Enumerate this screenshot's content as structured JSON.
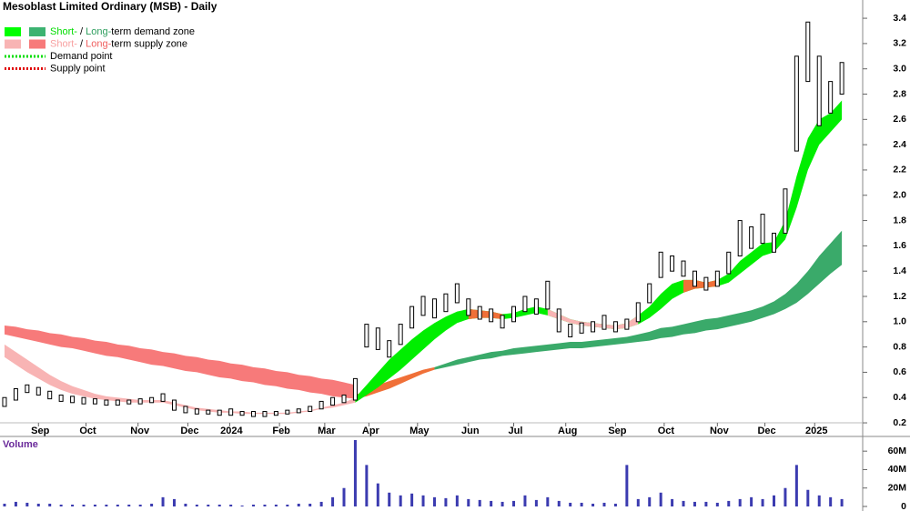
{
  "chart_data": [
    {
      "type": "ohlc",
      "title": "Mesoblast Limited Ordinary (MSB) - Daily",
      "color": "#000000",
      "x": [
        0,
        1,
        2,
        3,
        4,
        5,
        6,
        7,
        8,
        9,
        10,
        11,
        12,
        13,
        14,
        15,
        16,
        17,
        18,
        19,
        20,
        21,
        22,
        23,
        24,
        25,
        26,
        27,
        28,
        29,
        30,
        31,
        32,
        33,
        34,
        35,
        36,
        37,
        38,
        39,
        40,
        41,
        42,
        43,
        44,
        45,
        46,
        47,
        48,
        49,
        50,
        51,
        52,
        53,
        54,
        55,
        56,
        57,
        58,
        59,
        60,
        61,
        62,
        63,
        64,
        65,
        66,
        67,
        68,
        69,
        70,
        71,
        72,
        73,
        74
      ],
      "high": [
        0.4,
        0.47,
        0.5,
        0.48,
        0.45,
        0.42,
        0.41,
        0.4,
        0.39,
        0.38,
        0.38,
        0.38,
        0.39,
        0.4,
        0.43,
        0.38,
        0.33,
        0.31,
        0.3,
        0.3,
        0.31,
        0.29,
        0.29,
        0.29,
        0.29,
        0.3,
        0.31,
        0.33,
        0.37,
        0.4,
        0.42,
        0.55,
        0.98,
        0.95,
        0.85,
        0.98,
        1.12,
        1.2,
        1.18,
        1.22,
        1.3,
        1.18,
        1.12,
        1.1,
        1.05,
        1.12,
        1.2,
        1.18,
        1.32,
        1.1,
        0.98,
        0.99,
        1.0,
        1.05,
        1.0,
        1.02,
        1.15,
        1.3,
        1.55,
        1.52,
        1.48,
        1.4,
        1.35,
        1.4,
        1.55,
        1.8,
        1.75,
        1.85,
        1.7,
        2.05,
        3.1,
        3.37,
        3.1,
        2.9,
        3.05
      ],
      "low": [
        0.33,
        0.38,
        0.44,
        0.42,
        0.39,
        0.37,
        0.36,
        0.35,
        0.35,
        0.34,
        0.34,
        0.35,
        0.35,
        0.36,
        0.37,
        0.3,
        0.28,
        0.27,
        0.27,
        0.26,
        0.26,
        0.26,
        0.25,
        0.25,
        0.26,
        0.27,
        0.28,
        0.29,
        0.31,
        0.34,
        0.36,
        0.38,
        0.8,
        0.78,
        0.72,
        0.82,
        0.95,
        1.05,
        1.03,
        1.08,
        1.15,
        1.05,
        1.02,
        1.0,
        0.95,
        1.0,
        1.08,
        1.06,
        1.1,
        0.92,
        0.88,
        0.91,
        0.92,
        0.94,
        0.92,
        0.94,
        1.0,
        1.15,
        1.35,
        1.4,
        1.36,
        1.28,
        1.25,
        1.28,
        1.38,
        1.52,
        1.58,
        1.62,
        1.55,
        1.7,
        2.35,
        2.9,
        2.55,
        2.65,
        2.8
      ],
      "zones": [
        {
          "color": "#f77a7a",
          "x": [
            0,
            1,
            2,
            3,
            4,
            5,
            6,
            7,
            8,
            9,
            10,
            11,
            12,
            13,
            14,
            15,
            16,
            17,
            18,
            19,
            20,
            21,
            22,
            23,
            24,
            25,
            26,
            27,
            28,
            29,
            30,
            31
          ],
          "lower": [
            0.9,
            0.88,
            0.86,
            0.84,
            0.82,
            0.8,
            0.79,
            0.77,
            0.75,
            0.73,
            0.72,
            0.7,
            0.68,
            0.66,
            0.65,
            0.63,
            0.61,
            0.6,
            0.58,
            0.56,
            0.55,
            0.53,
            0.52,
            0.5,
            0.49,
            0.47,
            0.46,
            0.44,
            0.43,
            0.41,
            0.4,
            0.39
          ],
          "upper": [
            0.97,
            0.96,
            0.94,
            0.93,
            0.91,
            0.9,
            0.88,
            0.87,
            0.85,
            0.84,
            0.82,
            0.81,
            0.79,
            0.78,
            0.76,
            0.75,
            0.73,
            0.72,
            0.7,
            0.69,
            0.67,
            0.66,
            0.64,
            0.63,
            0.61,
            0.6,
            0.58,
            0.57,
            0.55,
            0.54,
            0.52,
            0.5
          ]
        },
        {
          "color": "#f07038",
          "x": [
            31,
            32,
            33,
            34,
            35,
            36,
            37,
            38
          ],
          "lower": [
            0.39,
            0.41,
            0.44,
            0.47,
            0.51,
            0.55,
            0.59,
            0.62
          ],
          "upper": [
            0.42,
            0.46,
            0.5,
            0.53,
            0.56,
            0.59,
            0.62,
            0.64
          ]
        },
        {
          "color": "#3aaa6a",
          "x": [
            38,
            39,
            40,
            41,
            42,
            43,
            44,
            45,
            46,
            47,
            48,
            49,
            50,
            51,
            52,
            53,
            54,
            55,
            56,
            57,
            58,
            59,
            60,
            61,
            62,
            63,
            64,
            65,
            66,
            67,
            68,
            69,
            70,
            71,
            72,
            73,
            74
          ],
          "lower": [
            0.62,
            0.64,
            0.66,
            0.68,
            0.7,
            0.71,
            0.73,
            0.74,
            0.75,
            0.76,
            0.77,
            0.78,
            0.79,
            0.79,
            0.8,
            0.81,
            0.82,
            0.83,
            0.84,
            0.85,
            0.87,
            0.88,
            0.9,
            0.91,
            0.93,
            0.94,
            0.96,
            0.98,
            1.0,
            1.03,
            1.06,
            1.1,
            1.15,
            1.22,
            1.3,
            1.38,
            1.45
          ],
          "upper": [
            0.64,
            0.67,
            0.7,
            0.72,
            0.74,
            0.76,
            0.77,
            0.79,
            0.8,
            0.81,
            0.82,
            0.83,
            0.84,
            0.84,
            0.85,
            0.86,
            0.87,
            0.88,
            0.9,
            0.92,
            0.95,
            0.96,
            0.98,
            1.0,
            1.02,
            1.03,
            1.05,
            1.07,
            1.09,
            1.12,
            1.16,
            1.22,
            1.3,
            1.4,
            1.52,
            1.62,
            1.72
          ]
        },
        {
          "color": "#f8b4b4",
          "x": [
            0,
            1,
            2,
            3,
            4,
            5,
            6,
            7,
            8,
            9,
            10,
            11,
            12,
            13,
            14,
            15,
            16,
            17,
            18,
            19,
            20,
            21,
            22,
            23,
            24,
            25,
            26,
            27,
            28,
            29,
            30,
            31
          ],
          "lower": [
            0.72,
            0.66,
            0.6,
            0.55,
            0.5,
            0.46,
            0.43,
            0.41,
            0.39,
            0.38,
            0.37,
            0.36,
            0.36,
            0.36,
            0.36,
            0.34,
            0.32,
            0.3,
            0.29,
            0.28,
            0.28,
            0.27,
            0.27,
            0.27,
            0.27,
            0.27,
            0.28,
            0.29,
            0.31,
            0.32,
            0.34,
            0.36
          ],
          "upper": [
            0.82,
            0.76,
            0.7,
            0.64,
            0.58,
            0.53,
            0.49,
            0.46,
            0.43,
            0.41,
            0.4,
            0.39,
            0.38,
            0.38,
            0.38,
            0.36,
            0.34,
            0.32,
            0.31,
            0.3,
            0.29,
            0.29,
            0.28,
            0.28,
            0.28,
            0.28,
            0.29,
            0.3,
            0.32,
            0.34,
            0.36,
            0.4
          ]
        },
        {
          "color": "#00ee00",
          "x": [
            31,
            32,
            33,
            34,
            35,
            36,
            37,
            38,
            39,
            40,
            41,
            42,
            43,
            44,
            45,
            46,
            47,
            48,
            49,
            50,
            51,
            52,
            53,
            54,
            55,
            56,
            57,
            58,
            59,
            60,
            61,
            62,
            63,
            64,
            65,
            66,
            67,
            68,
            69,
            70,
            71,
            72,
            73,
            74
          ],
          "lower": [
            0.36,
            0.42,
            0.48,
            0.55,
            0.62,
            0.7,
            0.78,
            0.86,
            0.93,
            0.99,
            1.02,
            1.03,
            1.03,
            1.02,
            1.03,
            1.05,
            1.07,
            1.05,
            1.02,
            0.99,
            0.97,
            0.96,
            0.95,
            0.94,
            0.95,
            0.98,
            1.03,
            1.1,
            1.18,
            1.23,
            1.26,
            1.27,
            1.28,
            1.31,
            1.38,
            1.45,
            1.52,
            1.55,
            1.65,
            1.9,
            2.2,
            2.4,
            2.5,
            2.6
          ],
          "upper": [
            0.4,
            0.5,
            0.6,
            0.7,
            0.78,
            0.86,
            0.93,
            0.99,
            1.04,
            1.08,
            1.1,
            1.09,
            1.08,
            1.06,
            1.07,
            1.1,
            1.12,
            1.1,
            1.06,
            1.02,
            1.0,
            0.99,
            0.98,
            0.97,
            0.99,
            1.05,
            1.12,
            1.22,
            1.3,
            1.33,
            1.33,
            1.31,
            1.33,
            1.38,
            1.48,
            1.55,
            1.62,
            1.63,
            1.8,
            2.15,
            2.45,
            2.6,
            2.65,
            2.75
          ]
        },
        {
          "color": "#f07038",
          "x": [
            41,
            42,
            43,
            44
          ],
          "lower": [
            1.02,
            1.03,
            1.03,
            1.02
          ],
          "upper": [
            1.1,
            1.09,
            1.08,
            1.06
          ]
        },
        {
          "color": "#f8b4b4",
          "x": [
            48,
            49,
            50,
            51,
            52,
            53,
            54,
            55,
            56
          ],
          "lower": [
            1.05,
            1.02,
            0.99,
            0.97,
            0.96,
            0.95,
            0.94,
            0.95,
            0.98
          ],
          "upper": [
            1.1,
            1.06,
            1.02,
            1.0,
            0.99,
            0.98,
            0.97,
            0.99,
            1.05
          ]
        },
        {
          "color": "#f07038",
          "x": [
            60,
            61,
            62,
            63
          ],
          "lower": [
            1.23,
            1.26,
            1.27,
            1.28
          ],
          "upper": [
            1.33,
            1.33,
            1.31,
            1.33
          ]
        }
      ],
      "legend": [
        {
          "swatches": [
            "#00ff00",
            "#3cb371"
          ],
          "parts": [
            {
              "text": "Short-",
              "color": "#00dd00"
            },
            {
              "text": " / ",
              "color": "#000000"
            },
            {
              "text": "Long-",
              "color": "#2e9e5e"
            },
            {
              "text": "term demand zone",
              "color": "#000000"
            }
          ]
        },
        {
          "swatches": [
            "#f8b4b4",
            "#f77a7a"
          ],
          "parts": [
            {
              "text": "Short-",
              "color": "#f8a0a0"
            },
            {
              "text": " / ",
              "color": "#000000"
            },
            {
              "text": "Long-",
              "color": "#f06060"
            },
            {
              "text": "term supply zone",
              "color": "#000000"
            }
          ]
        },
        {
          "dots": "#00dd00",
          "parts": [
            {
              "text": "Demand point",
              "color": "#000000"
            }
          ]
        },
        {
          "dots": "#e00000",
          "parts": [
            {
              "text": "Supply point",
              "color": "#000000"
            }
          ]
        }
      ],
      "xlim": [
        -0.4,
        75.6
      ],
      "xticks": [
        {
          "value": 3.0,
          "label": "Sep"
        },
        {
          "value": 7.2,
          "label": "Oct"
        },
        {
          "value": 11.8,
          "label": "Nov"
        },
        {
          "value": 16.2,
          "label": "Dec"
        },
        {
          "value": 19.9,
          "label": "2024"
        },
        {
          "value": 24.3,
          "label": "Feb"
        },
        {
          "value": 28.3,
          "label": "Mar"
        },
        {
          "value": 32.2,
          "label": "Apr"
        },
        {
          "value": 36.5,
          "label": "May"
        },
        {
          "value": 41.0,
          "label": "Jun"
        },
        {
          "value": 45.0,
          "label": "Jul"
        },
        {
          "value": 49.6,
          "label": "Aug"
        },
        {
          "value": 54.0,
          "label": "Sep"
        },
        {
          "value": 58.3,
          "label": "Oct"
        },
        {
          "value": 63.0,
          "label": "Nov"
        },
        {
          "value": 67.2,
          "label": "Dec"
        },
        {
          "value": 71.6,
          "label": "2025"
        }
      ],
      "ylim": [
        0.15,
        3.53
      ],
      "yticks": [
        0.2,
        0.4,
        0.6,
        0.8,
        {
          "value": 1.0,
          "label": "1.0"
        },
        1.2,
        1.4,
        1.6,
        1.8,
        {
          "value": 2.0,
          "label": "2.0"
        },
        2.2,
        2.4,
        2.6,
        2.8,
        {
          "value": 3.0,
          "label": "3.0"
        },
        3.2,
        3.4
      ]
    },
    {
      "type": "bar",
      "title": "Volume",
      "color": "#3b3bb0",
      "x": [
        0,
        1,
        2,
        3,
        4,
        5,
        6,
        7,
        8,
        9,
        10,
        11,
        12,
        13,
        14,
        15,
        16,
        17,
        18,
        19,
        20,
        21,
        22,
        23,
        24,
        25,
        26,
        27,
        28,
        29,
        30,
        31,
        32,
        33,
        34,
        35,
        36,
        37,
        38,
        39,
        40,
        41,
        42,
        43,
        44,
        45,
        46,
        47,
        48,
        49,
        50,
        51,
        52,
        53,
        54,
        55,
        56,
        57,
        58,
        59,
        60,
        61,
        62,
        63,
        64,
        65,
        66,
        67,
        68,
        69,
        70,
        71,
        72,
        73,
        74
      ],
      "values": [
        3000000,
        5000000,
        4000000,
        3000000,
        3000000,
        2000000,
        2000000,
        2000000,
        2000000,
        2000000,
        2000000,
        2000000,
        2000000,
        3000000,
        10000000,
        8000000,
        3000000,
        2000000,
        2000000,
        2000000,
        2000000,
        1000000,
        2000000,
        2000000,
        2000000,
        2000000,
        3000000,
        3000000,
        5000000,
        10000000,
        20000000,
        72000000,
        45000000,
        25000000,
        15000000,
        12000000,
        14000000,
        12000000,
        10000000,
        9000000,
        12000000,
        8000000,
        7000000,
        6000000,
        5000000,
        6000000,
        12000000,
        7000000,
        10000000,
        6000000,
        4000000,
        4000000,
        3000000,
        4000000,
        3000000,
        45000000,
        8000000,
        10000000,
        15000000,
        8000000,
        6000000,
        5000000,
        5000000,
        4000000,
        6000000,
        8000000,
        10000000,
        8000000,
        12000000,
        20000000,
        45000000,
        18000000,
        12000000,
        10000000,
        8000000
      ],
      "ylim": [
        0,
        72000000
      ],
      "yticks": [
        0,
        {
          "value": 20000000,
          "label": "20M"
        },
        {
          "value": 40000000,
          "label": "40M"
        },
        {
          "value": 60000000,
          "label": "60M"
        }
      ]
    }
  ]
}
